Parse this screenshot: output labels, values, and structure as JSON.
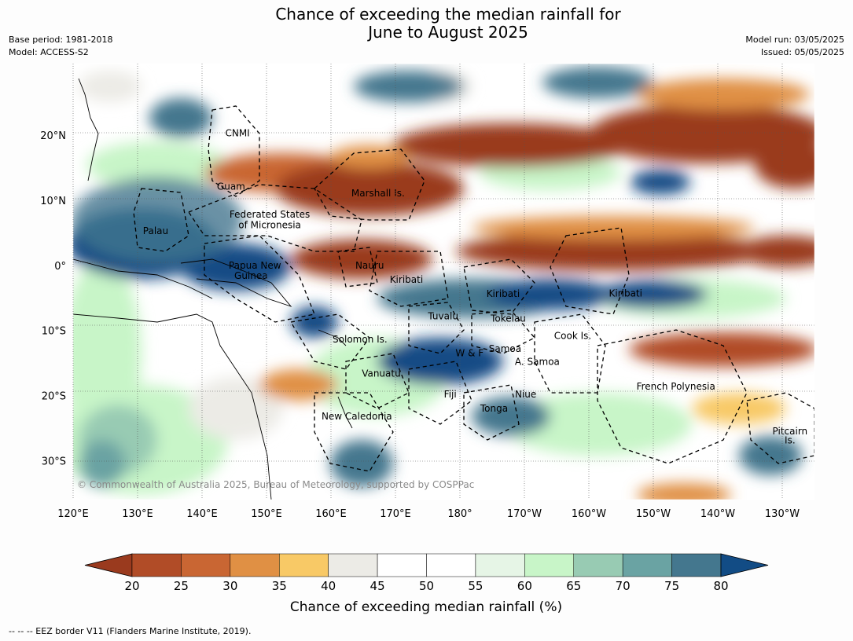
{
  "title": {
    "line1": "Chance of exceeding the median rainfall for",
    "line2": "June to August 2025"
  },
  "meta": {
    "base_period": "Base period: 1981-2018",
    "model": "Model: ACCESS-S2",
    "model_run": "Model run: 03/05/2025",
    "issued": "Issued: 05/05/2025"
  },
  "map": {
    "lon_range": [
      120,
      235
    ],
    "lat_range": [
      -36,
      31
    ],
    "lon_ticks": [
      {
        "lon": 120,
        "label": "120°E"
      },
      {
        "lon": 130,
        "label": "130°E"
      },
      {
        "lon": 140,
        "label": "140°E"
      },
      {
        "lon": 150,
        "label": "150°E"
      },
      {
        "lon": 160,
        "label": "160°E"
      },
      {
        "lon": 170,
        "label": "170°E"
      },
      {
        "lon": 180,
        "label": "180°"
      },
      {
        "lon": 190,
        "label": "170°W"
      },
      {
        "lon": 200,
        "label": "160°W"
      },
      {
        "lon": 210,
        "label": "150°W"
      },
      {
        "lon": 220,
        "label": "140°W"
      },
      {
        "lon": 230,
        "label": "130°W"
      }
    ],
    "lat_ticks": [
      {
        "lat": 20,
        "label": "20°N"
      },
      {
        "lat": 10,
        "label": "10°N"
      },
      {
        "lat": 0,
        "label": "0°"
      },
      {
        "lat": -10,
        "label": "10°S"
      },
      {
        "lat": -20,
        "label": "20°S"
      },
      {
        "lat": -30,
        "label": "30°S"
      }
    ],
    "regions": [
      {
        "name": "CNMI",
        "lon": 145.5,
        "lat": 20.3
      },
      {
        "name": "Guam",
        "lon": 144.5,
        "lat": 12.1
      },
      {
        "name": "Marshall Is.",
        "lon": 167.3,
        "lat": 11.1
      },
      {
        "name": "Federated States",
        "lon": 150.5,
        "lat": 7.8
      },
      {
        "name": "of Micronesia",
        "lon": 150.5,
        "lat": 6.2
      },
      {
        "name": "Palau",
        "lon": 132.8,
        "lat": 5.3
      },
      {
        "name": "Papua New",
        "lon": 148.2,
        "lat": 0.0
      },
      {
        "name": "Guinea",
        "lon": 147.6,
        "lat": -1.6
      },
      {
        "name": "Nauru",
        "lon": 166.0,
        "lat": 0.0
      },
      {
        "name": "Kiribati",
        "lon": 171.7,
        "lat": -2.2
      },
      {
        "name": "Kiribati",
        "lon": 186.7,
        "lat": -4.4
      },
      {
        "name": "Kiribati",
        "lon": 205.7,
        "lat": -4.3
      },
      {
        "name": "Tuvalu",
        "lon": 177.4,
        "lat": -7.8
      },
      {
        "name": "Tokelau",
        "lon": 187.5,
        "lat": -8.2
      },
      {
        "name": "Cook Is.",
        "lon": 197.5,
        "lat": -10.8
      },
      {
        "name": "Solomon Is.",
        "lon": 164.5,
        "lat": -11.4
      },
      {
        "name": "Samoa",
        "lon": 187.0,
        "lat": -12.8
      },
      {
        "name": "W & F",
        "lon": 181.5,
        "lat": -13.5
      },
      {
        "name": "A. Samoa",
        "lon": 192.0,
        "lat": -14.8
      },
      {
        "name": "Vanuatu",
        "lon": 167.8,
        "lat": -16.6
      },
      {
        "name": "Fiji",
        "lon": 178.5,
        "lat": -19.8
      },
      {
        "name": "Niue",
        "lon": 190.2,
        "lat": -19.8
      },
      {
        "name": "Tonga",
        "lon": 185.3,
        "lat": -22.0
      },
      {
        "name": "French Polynesia",
        "lon": 213.5,
        "lat": -18.6
      },
      {
        "name": "New Caledonia",
        "lon": 164.0,
        "lat": -23.2
      },
      {
        "name": "Pitcairn",
        "lon": 231.2,
        "lat": -25.5
      },
      {
        "name": "Is.",
        "lon": 231.2,
        "lat": -26.9
      }
    ],
    "credit": "© Commonwealth of Australia 2025, Bureau of Meteorology, supported by COSPPac"
  },
  "colorbar": {
    "levels": [
      20,
      25,
      30,
      35,
      40,
      45,
      50,
      55,
      60,
      65,
      70,
      75,
      80
    ],
    "colors": [
      "#9a3a1e",
      "#b14c27",
      "#c96633",
      "#e09044",
      "#f8c966",
      "#ecebe6",
      "#ffffff",
      "#ffffff",
      "#e6f5e6",
      "#c8f5c8",
      "#98cbb3",
      "#6aa3a3",
      "#44778e",
      "#124c85"
    ],
    "title": "Chance of exceeding median rainfall (%)"
  },
  "eez_note": "-- -- -- EEZ border V11 (Flanders Marine Institute, 2019).",
  "colors": {
    "very_dry": "#9a3a1e",
    "dry": "#c96633",
    "neutral": "#ffffff",
    "wet": "#98cbb3",
    "very_wet": "#124c85"
  }
}
